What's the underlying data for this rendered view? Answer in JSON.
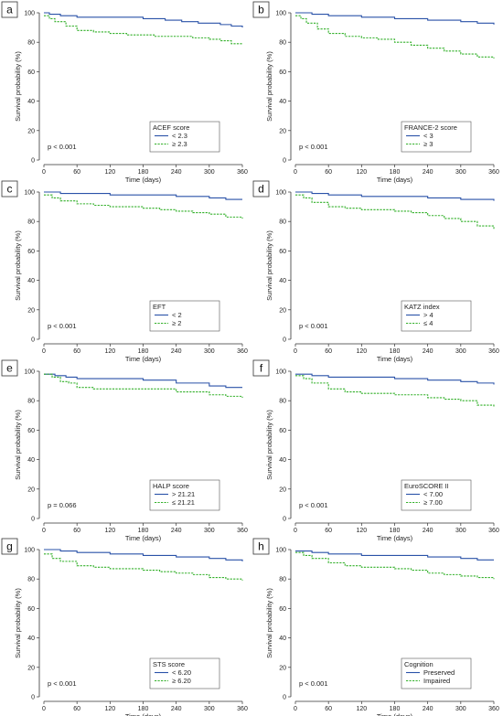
{
  "colors": {
    "series1": "#2a52a8",
    "series2": "#33b02a"
  },
  "chart_data": [
    {
      "panel": "a",
      "type": "line",
      "xlabel": "Time (days)",
      "ylabel": "Survival probability (%)",
      "xlim": [
        0,
        360
      ],
      "ylim": [
        0,
        100
      ],
      "xticks": [
        "0",
        "60",
        "120",
        "180",
        "240",
        "300",
        "360"
      ],
      "yticks": [
        "0",
        "20",
        "40",
        "60",
        "80",
        "100"
      ],
      "legend_title": "ACEF score",
      "pvalue": "p < 0.001",
      "series": [
        {
          "name": "< 2.3",
          "style": "solid",
          "x": [
            0,
            10,
            30,
            60,
            120,
            180,
            220,
            250,
            280,
            300,
            320,
            340,
            360
          ],
          "y": [
            100,
            99,
            98,
            97,
            97,
            96,
            95,
            94,
            93,
            93,
            92,
            91,
            90
          ]
        },
        {
          "name": "≥ 2.3",
          "style": "dashed",
          "x": [
            0,
            10,
            20,
            40,
            60,
            90,
            120,
            150,
            180,
            200,
            220,
            250,
            270,
            300,
            320,
            340,
            360
          ],
          "y": [
            98,
            96,
            94,
            91,
            88,
            87,
            86,
            85,
            85,
            84,
            84,
            84,
            83,
            82,
            81,
            79,
            79
          ]
        }
      ]
    },
    {
      "panel": "b",
      "type": "line",
      "xlabel": "Time (days)",
      "ylabel": "Survival probability (%)",
      "xlim": [
        0,
        360
      ],
      "ylim": [
        0,
        100
      ],
      "xticks": [
        "0",
        "60",
        "120",
        "180",
        "240",
        "300",
        "360"
      ],
      "yticks": [
        "0",
        "20",
        "40",
        "60",
        "80",
        "100"
      ],
      "legend_title": "FRANCE-2 score",
      "pvalue": "p < 0.001",
      "series": [
        {
          "name": "< 3",
          "style": "solid",
          "x": [
            0,
            30,
            60,
            120,
            180,
            240,
            270,
            300,
            330,
            360
          ],
          "y": [
            100,
            99,
            98,
            97,
            96,
            95,
            95,
            94,
            93,
            92
          ]
        },
        {
          "name": "≥ 3",
          "style": "dashed",
          "x": [
            0,
            10,
            20,
            40,
            60,
            90,
            120,
            150,
            180,
            210,
            240,
            270,
            300,
            330,
            360
          ],
          "y": [
            98,
            96,
            93,
            89,
            86,
            84,
            83,
            82,
            80,
            78,
            76,
            74,
            72,
            70,
            69
          ]
        }
      ]
    },
    {
      "panel": "c",
      "type": "line",
      "xlabel": "Time (days)",
      "ylabel": "Survival probability (%)",
      "xlim": [
        0,
        360
      ],
      "ylim": [
        0,
        100
      ],
      "xticks": [
        "0",
        "60",
        "120",
        "180",
        "240",
        "300",
        "360"
      ],
      "yticks": [
        "0",
        "20",
        "40",
        "60",
        "80",
        "100"
      ],
      "legend_title": "EFT",
      "pvalue": "p < 0.001",
      "series": [
        {
          "name": "< 2",
          "style": "solid",
          "x": [
            0,
            30,
            60,
            120,
            180,
            240,
            300,
            330,
            360
          ],
          "y": [
            100,
            99,
            99,
            98,
            98,
            97,
            96,
            95,
            95
          ]
        },
        {
          "name": "≥ 2",
          "style": "dashed",
          "x": [
            0,
            15,
            30,
            60,
            90,
            120,
            180,
            210,
            240,
            270,
            300,
            330,
            360
          ],
          "y": [
            98,
            96,
            94,
            92,
            91,
            90,
            89,
            88,
            87,
            86,
            85,
            83,
            82
          ]
        }
      ]
    },
    {
      "panel": "d",
      "type": "line",
      "xlabel": "Time (days)",
      "ylabel": "Survival probability (%)",
      "xlim": [
        0,
        360
      ],
      "ylim": [
        0,
        100
      ],
      "xticks": [
        "0",
        "60",
        "120",
        "180",
        "240",
        "300",
        "360"
      ],
      "yticks": [
        "0",
        "20",
        "40",
        "60",
        "80",
        "100"
      ],
      "legend_title": "KATZ index",
      "pvalue": "p < 0.001",
      "series": [
        {
          "name": "> 4",
          "style": "solid",
          "x": [
            0,
            30,
            60,
            120,
            180,
            240,
            300,
            360
          ],
          "y": [
            100,
            99,
            98,
            97,
            97,
            96,
            95,
            94
          ]
        },
        {
          "name": "≤ 4",
          "style": "dashed",
          "x": [
            0,
            15,
            30,
            60,
            90,
            120,
            180,
            210,
            240,
            270,
            300,
            330,
            360
          ],
          "y": [
            98,
            96,
            93,
            90,
            89,
            88,
            87,
            86,
            84,
            82,
            80,
            77,
            75
          ]
        }
      ]
    },
    {
      "panel": "e",
      "type": "line",
      "xlabel": "Time (days)",
      "ylabel": "Survival probability (%)",
      "xlim": [
        0,
        360
      ],
      "ylim": [
        0,
        100
      ],
      "xticks": [
        "0",
        "60",
        "120",
        "180",
        "240",
        "300",
        "360"
      ],
      "yticks": [
        "0",
        "20",
        "40",
        "60",
        "80",
        "100"
      ],
      "legend_title": "HALP score",
      "pvalue": "p = 0.066",
      "series": [
        {
          "name": "> 21.21",
          "style": "solid",
          "x": [
            0,
            20,
            40,
            60,
            120,
            180,
            240,
            300,
            330,
            360
          ],
          "y": [
            98,
            97,
            96,
            95,
            95,
            94,
            92,
            90,
            89,
            89
          ]
        },
        {
          "name": "≤ 21.21",
          "style": "dashed",
          "x": [
            0,
            15,
            30,
            45,
            60,
            90,
            120,
            180,
            240,
            300,
            330,
            360
          ],
          "y": [
            98,
            96,
            93,
            92,
            89,
            88,
            88,
            88,
            86,
            84,
            83,
            82
          ]
        }
      ]
    },
    {
      "panel": "f",
      "type": "line",
      "xlabel": "Time (days)",
      "ylabel": "Survival probability (%)",
      "xlim": [
        0,
        360
      ],
      "ylim": [
        0,
        100
      ],
      "xticks": [
        "0",
        "60",
        "120",
        "180",
        "240",
        "300",
        "360"
      ],
      "yticks": [
        "0",
        "20",
        "40",
        "60",
        "80",
        "100"
      ],
      "legend_title": "EuroSCORE II",
      "pvalue": "p < 0.001",
      "series": [
        {
          "name": "< 7.00",
          "style": "solid",
          "x": [
            0,
            30,
            60,
            120,
            180,
            240,
            300,
            330,
            360
          ],
          "y": [
            98,
            97,
            96,
            96,
            95,
            94,
            93,
            92,
            91
          ]
        },
        {
          "name": "≥ 7.00",
          "style": "dashed",
          "x": [
            0,
            15,
            30,
            60,
            90,
            120,
            180,
            240,
            270,
            300,
            330,
            360
          ],
          "y": [
            97,
            95,
            92,
            88,
            86,
            85,
            84,
            82,
            81,
            80,
            77,
            76
          ]
        }
      ]
    },
    {
      "panel": "g",
      "type": "line",
      "xlabel": "Time (days)",
      "ylabel": "Survival probability (%)",
      "xlim": [
        0,
        360
      ],
      "ylim": [
        0,
        100
      ],
      "xticks": [
        "0",
        "60",
        "120",
        "180",
        "240",
        "300",
        "360"
      ],
      "yticks": [
        "0",
        "20",
        "40",
        "60",
        "80",
        "100"
      ],
      "legend_title": "STS score",
      "pvalue": "p < 0.001",
      "series": [
        {
          "name": "< 6.20",
          "style": "solid",
          "x": [
            0,
            30,
            60,
            120,
            180,
            240,
            300,
            330,
            360
          ],
          "y": [
            100,
            99,
            98,
            97,
            96,
            95,
            94,
            93,
            92
          ]
        },
        {
          "name": "≥ 6.20",
          "style": "dashed",
          "x": [
            0,
            15,
            30,
            60,
            90,
            120,
            180,
            210,
            240,
            270,
            300,
            330,
            360
          ],
          "y": [
            97,
            94,
            92,
            89,
            88,
            87,
            86,
            85,
            84,
            83,
            81,
            80,
            79
          ]
        }
      ]
    },
    {
      "panel": "h",
      "type": "line",
      "xlabel": "Time (days)",
      "ylabel": "Survival probability (%)",
      "xlim": [
        0,
        360
      ],
      "ylim": [
        0,
        100
      ],
      "xticks": [
        "0",
        "60",
        "120",
        "180",
        "240",
        "300",
        "360"
      ],
      "yticks": [
        "0",
        "20",
        "40",
        "60",
        "80",
        "100"
      ],
      "legend_title": "Cognition",
      "pvalue": "p < 0.001",
      "series": [
        {
          "name": "Preserved",
          "style": "solid",
          "x": [
            0,
            30,
            60,
            120,
            180,
            240,
            300,
            330,
            360
          ],
          "y": [
            99,
            98,
            97,
            96,
            96,
            95,
            94,
            93,
            93
          ]
        },
        {
          "name": "Impaired",
          "style": "dashed",
          "x": [
            0,
            15,
            30,
            60,
            90,
            120,
            180,
            210,
            240,
            270,
            300,
            330,
            360
          ],
          "y": [
            98,
            96,
            94,
            91,
            89,
            88,
            87,
            86,
            84,
            83,
            82,
            81,
            80
          ]
        }
      ]
    }
  ]
}
